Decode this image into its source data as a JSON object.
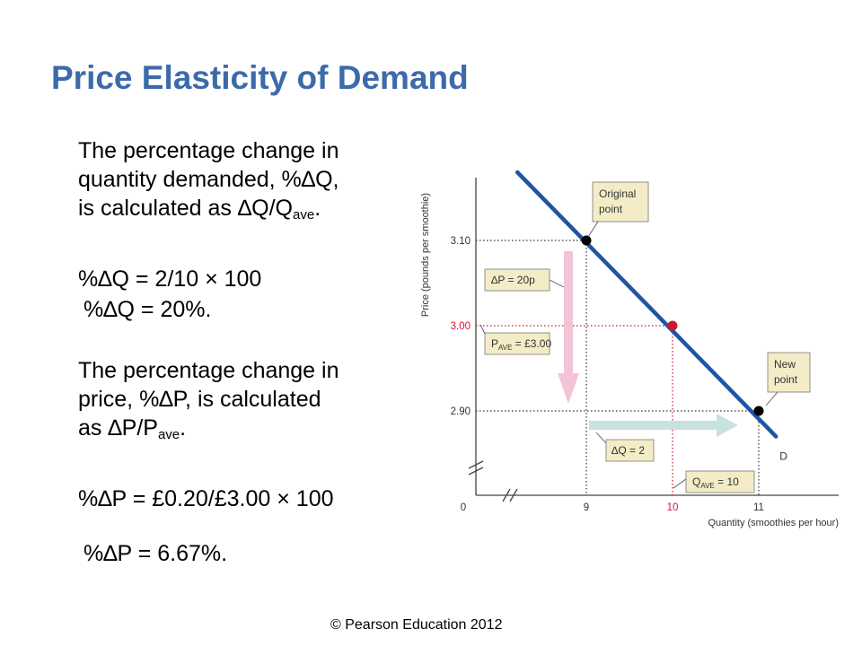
{
  "slide": {
    "title": "Price Elasticity of Demand",
    "copyright": "© Pearson Education 2012"
  },
  "text": {
    "p1_line1": "The percentage change in",
    "p1_line2": "quantity demanded, %∆Q,",
    "p1_line3_main": "is calculated as ∆Q/Q",
    "p1_line3_sub": "ave",
    "p1_line3_end": ".",
    "eq1": "%∆Q = 2/10 × 100",
    "eq2": "%∆Q = 20%.",
    "p2_line1": "The percentage change in",
    "p2_line2": "price, %∆P, is calculated",
    "p2_line3_main": "as ∆P/P",
    "p2_line3_sub": "ave",
    "p2_line3_end": ".",
    "eq3": "%∆P = £0.20/£3.00 × 100",
    "eq4": "%∆P = 6.67%."
  },
  "chart_data": {
    "type": "line",
    "xlabel": "Quantity (smoothies per hour)",
    "ylabel": "Price (pounds per smoothie)",
    "x_ticks": [
      {
        "value": 0,
        "label": "0"
      },
      {
        "value": 9,
        "label": "9"
      },
      {
        "value": 10,
        "label": "10"
      },
      {
        "value": 11,
        "label": "11"
      }
    ],
    "y_ticks": [
      {
        "value": 3.1,
        "label": "3.10"
      },
      {
        "value": 3.0,
        "label": "3.00"
      },
      {
        "value": 2.9,
        "label": "2.90"
      }
    ],
    "axis_breaks": true,
    "series": [
      {
        "name": "D",
        "x": [
          8.2,
          11.2
        ],
        "y": [
          3.18,
          2.87
        ]
      }
    ],
    "points": [
      {
        "id": "original",
        "x": 9,
        "y": 3.1,
        "color": "#000000"
      },
      {
        "id": "midpoint",
        "x": 10,
        "y": 3.0,
        "color": "#d0162e"
      },
      {
        "id": "new",
        "x": 11,
        "y": 2.9,
        "color": "#000000"
      }
    ],
    "annotations": {
      "original_point": [
        "Original",
        "point"
      ],
      "new_point": [
        "New",
        "point"
      ],
      "delta_p": "∆P = 20p",
      "p_ave": "P",
      "p_ave_sub": "AVE",
      "p_ave_value": " = £3.00",
      "delta_q": "∆Q = 2",
      "q_ave": "Q",
      "q_ave_sub": "AVE",
      "q_ave_value": " = 10"
    },
    "colors": {
      "demand_line": "#1f55a5",
      "price_arrow": "#f3c4d7",
      "quantity_arrow": "#c6e3e0",
      "label_box": "#f4ecc6",
      "red_guide": "#d0162e",
      "black_guide": "#333333",
      "axis": "#444444",
      "tick_red": "#d0162e"
    }
  }
}
